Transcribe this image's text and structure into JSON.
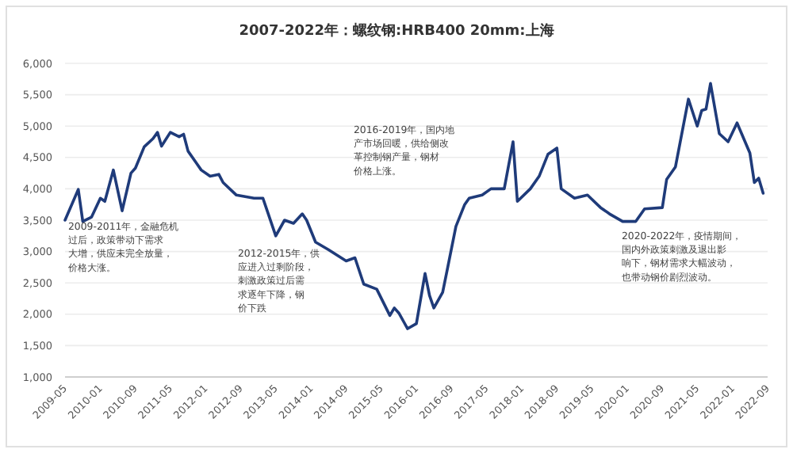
{
  "chart_data": {
    "type": "line",
    "title": "2007-2022年：螺纹钢:HRB400 20mm:上海",
    "x": [
      "2009-05",
      "2009-08",
      "2009-09",
      "2009-11",
      "2010-01",
      "2010-02",
      "2010-04",
      "2010-06",
      "2010-08",
      "2010-09",
      "2010-11",
      "2011-01",
      "2011-02",
      "2011-03",
      "2011-05",
      "2011-07",
      "2011-08",
      "2011-09",
      "2011-11",
      "2011-12",
      "2012-02",
      "2012-04",
      "2012-05",
      "2012-08",
      "2012-12",
      "2013-02",
      "2013-05",
      "2013-07",
      "2013-09",
      "2013-11",
      "2013-12",
      "2014-02",
      "2014-05",
      "2014-09",
      "2014-11",
      "2015-01",
      "2015-04",
      "2015-07",
      "2015-08",
      "2015-09",
      "2015-11",
      "2016-01",
      "2016-03",
      "2016-04",
      "2016-05",
      "2016-07",
      "2016-08",
      "2016-10",
      "2016-12",
      "2017-01",
      "2017-04",
      "2017-06",
      "2017-09",
      "2017-11",
      "2017-12",
      "2018-03",
      "2018-05",
      "2018-07",
      "2018-09",
      "2018-10",
      "2019-01",
      "2019-04",
      "2019-07",
      "2019-09",
      "2019-12",
      "2020-03",
      "2020-05",
      "2020-09",
      "2020-10",
      "2020-12",
      "2021-03",
      "2021-05",
      "2021-06",
      "2021-07",
      "2021-08",
      "2021-10",
      "2021-12",
      "2022-02",
      "2022-05",
      "2022-06",
      "2022-07",
      "2022-08"
    ],
    "series": [
      {
        "color": "#1f3b7a",
        "values": [
          3500,
          3990,
          3480,
          3550,
          3850,
          3800,
          4300,
          3650,
          4250,
          4330,
          4670,
          4800,
          4900,
          4680,
          4900,
          4830,
          4870,
          4600,
          4400,
          4300,
          4200,
          4230,
          4100,
          3900,
          3850,
          3850,
          3250,
          3500,
          3450,
          3600,
          3500,
          3150,
          3030,
          2850,
          2900,
          2480,
          2400,
          1980,
          2100,
          2020,
          1770,
          1850,
          2650,
          2300,
          2100,
          2350,
          2700,
          3400,
          3750,
          3850,
          3900,
          4000,
          4000,
          4750,
          3800,
          4000,
          4200,
          4550,
          4650,
          4000,
          3850,
          3900,
          3700,
          3600,
          3480,
          3480,
          3680,
          3700,
          4150,
          4350,
          5430,
          5000,
          5250,
          5270,
          5680,
          4880,
          4750,
          5050,
          4570,
          4100,
          4170,
          3930
        ]
      }
    ],
    "xlim": [
      "2009-05",
      "2022-09"
    ],
    "xticks": [
      {
        "value": "2009-05",
        "label": "2009-05"
      },
      {
        "value": "2010-01",
        "label": "2010-01"
      },
      {
        "value": "2010-09",
        "label": "2010-09"
      },
      {
        "value": "2011-05",
        "label": "2011-05"
      },
      {
        "value": "2012-01",
        "label": "2012-01"
      },
      {
        "value": "2012-09",
        "label": "2012-09"
      },
      {
        "value": "2013-05",
        "label": "2013-05"
      },
      {
        "value": "2014-01",
        "label": "2014-01"
      },
      {
        "value": "2014-09",
        "label": "2014-09"
      },
      {
        "value": "2015-05",
        "label": "2015-05"
      },
      {
        "value": "2016-01",
        "label": "2016-01"
      },
      {
        "value": "2016-09",
        "label": "2016-09"
      },
      {
        "value": "2017-05",
        "label": "2017-05"
      },
      {
        "value": "2018-01",
        "label": "2018-01"
      },
      {
        "value": "2018-09",
        "label": "2018-09"
      },
      {
        "value": "2019-05",
        "label": "2019-05"
      },
      {
        "value": "2020-01",
        "label": "2020-01"
      },
      {
        "value": "2020-09",
        "label": "2020-09"
      },
      {
        "value": "2021-05",
        "label": "2021-05"
      },
      {
        "value": "2022-01",
        "label": "2022-01"
      },
      {
        "value": "2022-09",
        "label": "2022-09"
      }
    ],
    "ylim": [
      1000,
      6000
    ],
    "yticks": [
      {
        "value": 1000,
        "label": "1,000"
      },
      {
        "value": 1500,
        "label": "1,500"
      },
      {
        "value": 2000,
        "label": "2,000"
      },
      {
        "value": 2500,
        "label": "2,500"
      },
      {
        "value": 3000,
        "label": "3,000"
      },
      {
        "value": 3500,
        "label": "3,500"
      },
      {
        "value": 4000,
        "label": "4,000"
      },
      {
        "value": 4500,
        "label": "4,500"
      },
      {
        "value": 5000,
        "label": "5,000"
      },
      {
        "value": 5500,
        "label": "5,500"
      },
      {
        "value": 6000,
        "label": "6,000"
      }
    ],
    "grid": "y",
    "marker": "none",
    "line_style": "solid",
    "annotations": [
      "2009-2011年，金融危机过后，政策带动下需求大增，供应未完全放量，价格大涨。",
      "2012-2015年，供应进入过剩阶段，刺激政策过后需求逐年下降，钢价下跌",
      "2016-2019年，国内地产市场回暖，供给侧改革控制钢产量，钢材价格上涨。",
      "2020-2022年，疫情期间，国内外政策刺激及退出影响下，钢材需求大幅波动，也带动钢价剧烈波动。"
    ]
  }
}
